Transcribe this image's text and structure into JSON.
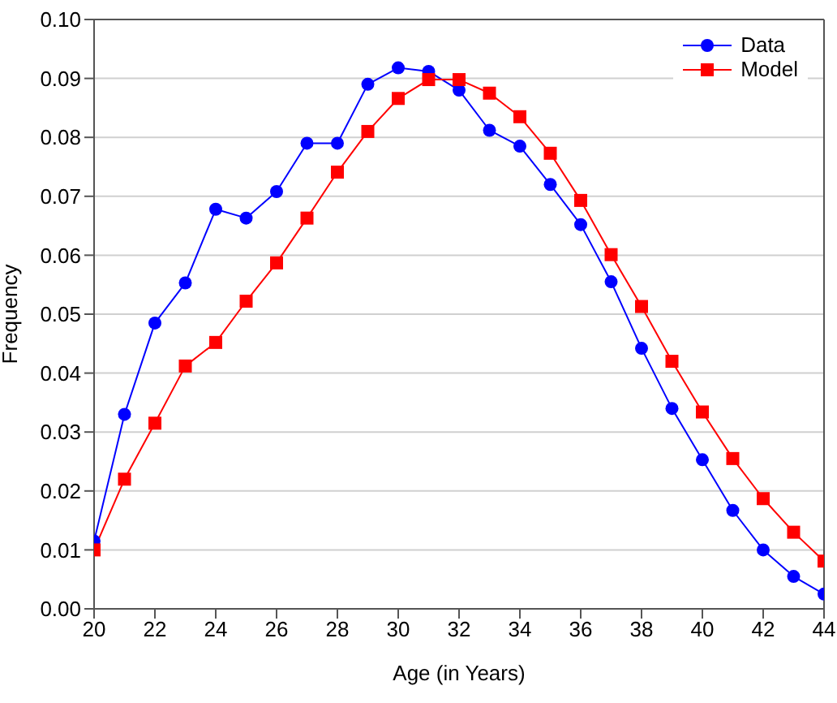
{
  "chart_data": {
    "type": "line",
    "xlabel": "Age (in Years)",
    "ylabel": "Frequency",
    "x": [
      20,
      21,
      22,
      23,
      24,
      25,
      26,
      27,
      28,
      29,
      30,
      31,
      32,
      33,
      34,
      35,
      36,
      37,
      38,
      39,
      40,
      41,
      42,
      43,
      44
    ],
    "series": [
      {
        "name": "Data",
        "color": "#0000ff",
        "marker": "circle",
        "values": [
          0.0115,
          0.033,
          0.0485,
          0.0553,
          0.0678,
          0.0663,
          0.0708,
          0.079,
          0.079,
          0.089,
          0.0918,
          0.0912,
          0.088,
          0.0812,
          0.0785,
          0.072,
          0.0652,
          0.0555,
          0.0442,
          0.034,
          0.0253,
          0.0167,
          0.01,
          0.0055,
          0.0025
        ]
      },
      {
        "name": "Model",
        "color": "#ff0000",
        "marker": "square",
        "values": [
          0.01,
          0.022,
          0.0315,
          0.0412,
          0.0452,
          0.0522,
          0.0587,
          0.0663,
          0.0741,
          0.081,
          0.0866,
          0.0898,
          0.0898,
          0.0875,
          0.0835,
          0.0773,
          0.0693,
          0.0601,
          0.0513,
          0.042,
          0.0334,
          0.0255,
          0.0187,
          0.013,
          0.0081
        ]
      }
    ],
    "xlim": [
      20,
      44
    ],
    "xticks": [
      20,
      22,
      24,
      26,
      28,
      30,
      32,
      34,
      36,
      38,
      40,
      42,
      44
    ],
    "ylim": [
      0,
      0.1
    ],
    "yticks": [
      {
        "value": 0,
        "label": "0.00"
      },
      {
        "value": 0.01,
        "label": "0.01"
      },
      {
        "value": 0.02,
        "label": "0.02"
      },
      {
        "value": 0.03,
        "label": "0.03"
      },
      {
        "value": 0.04,
        "label": "0.04"
      },
      {
        "value": 0.05,
        "label": "0.05"
      },
      {
        "value": 0.06,
        "label": "0.06"
      },
      {
        "value": 0.07,
        "label": "0.07"
      },
      {
        "value": 0.08,
        "label": "0.08"
      },
      {
        "value": 0.09,
        "label": "0.09"
      },
      {
        "value": 0.1,
        "label": "0.10"
      }
    ],
    "grid": "y",
    "legend": "top right",
    "line_style": "solid"
  }
}
